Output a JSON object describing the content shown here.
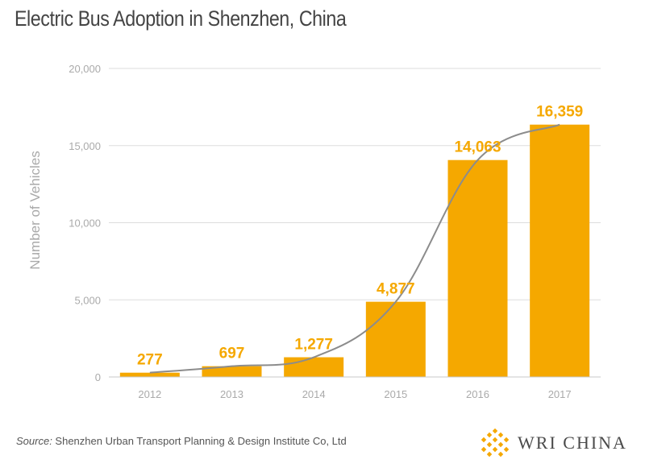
{
  "chart_data": {
    "type": "bar",
    "title": "Electric Bus Adoption in Shenzhen, China",
    "ylabel": "Number of Vehicles",
    "xlabel": "",
    "categories": [
      "2012",
      "2013",
      "2014",
      "2015",
      "2016",
      "2017"
    ],
    "values": [
      277,
      697,
      1277,
      4877,
      14063,
      16359
    ],
    "value_labels": [
      "277",
      "697",
      "1,277",
      "4,877",
      "14,063",
      "16,359"
    ],
    "ylim": [
      0,
      20000
    ],
    "yticks": [
      0,
      5000,
      10000,
      15000,
      20000
    ],
    "ytick_labels": [
      "0",
      "5,000",
      "10,000",
      "15,000",
      "20,000"
    ],
    "grid": true,
    "trend_line": true,
    "colors": {
      "bar": "#F5A800",
      "value_label": "#F5A800",
      "trend_line": "#8c8c8c",
      "grid": "#dddddd",
      "tick_text": "#aaaaaa"
    }
  },
  "footer": {
    "source_prefix": "Source:",
    "source_text": " Shenzhen Urban Transport Planning & Design Institute Co, Ltd",
    "logo_text": "WRI CHINA",
    "logo_icon": "wri-lattice-icon",
    "logo_color": "#F5A800"
  }
}
